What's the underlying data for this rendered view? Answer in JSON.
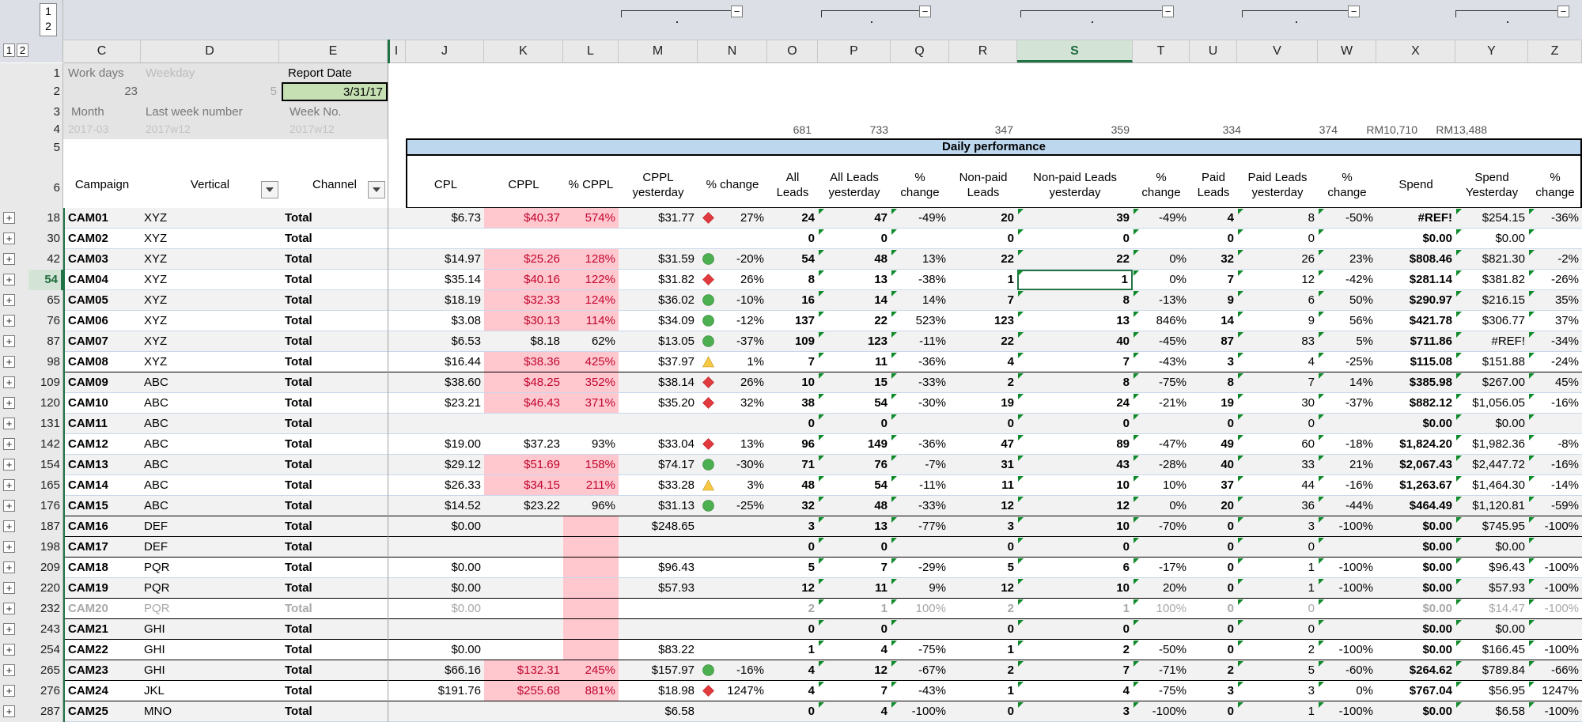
{
  "outline": {
    "row_levels": [
      "1",
      "2"
    ],
    "col_levels": [
      "1",
      "2"
    ]
  },
  "columns": [
    "C",
    "D",
    "E",
    "I",
    "J",
    "K",
    "L",
    "M",
    "N",
    "O",
    "P",
    "Q",
    "R",
    "S",
    "T",
    "U",
    "V",
    "W",
    "X",
    "Y",
    "Z"
  ],
  "selected_column": "S",
  "info": {
    "rows": [
      "1",
      "2",
      "3",
      "4",
      "5",
      "6"
    ],
    "work_days_label": "Work days",
    "weekday_label": "Weekday",
    "report_date_label": "Report Date",
    "work_days_value": "23",
    "weekday_value": "5",
    "report_date_value": "3/31/17",
    "month_label": "Month",
    "last_week_label": "Last week number",
    "week_no_label": "Week No.",
    "month_value": "2017-03",
    "last_week_value": "2017w12",
    "week_no_value": "2017w12"
  },
  "totals": {
    "O": "681",
    "P": "733",
    "R": "347",
    "S": "359",
    "U": "334",
    "V": "374",
    "X": "RM10,710",
    "Y": "RM13,488"
  },
  "banner": "Daily performance",
  "headers": {
    "campaign": "Campaign",
    "vertical": "Vertical",
    "channel": "Channel",
    "cpl": "CPL",
    "cppl": "CPPL",
    "pct_cppl": "% CPPL",
    "cppl_y1": "CPPL",
    "cppl_y2": "yesterday",
    "pct_change": "% change",
    "all_leads1": "All",
    "all_leads2": "Leads",
    "all_leads_y1": "All Leads",
    "all_leads_y2": "yesterday",
    "pct1": "%",
    "pct2": "change",
    "np1": "Non-paid",
    "np2": "Leads",
    "np_y1": "Non-paid Leads",
    "np_y2": "yesterday",
    "paid1": "Paid",
    "paid2": "Leads",
    "paid_y1": "Paid Leads",
    "paid_y2": "yesterday",
    "spend": "Spend",
    "spend_y1": "Spend",
    "spend_y2": "Yesterday"
  },
  "rows": [
    {
      "row": "18",
      "campaign": "CAM01",
      "vertical": "XYZ",
      "channel": "Total",
      "cpl": "$6.73",
      "cppl": "$40.37",
      "pct_cppl": "574%",
      "cppl_y": "$31.77",
      "icon": "red-diamond",
      "chg": "27%",
      "all": "24",
      "all_y": "47",
      "all_chg": "-49%",
      "np": "20",
      "np_y": "39",
      "np_chg": "-49%",
      "paid": "4",
      "paid_y": "8",
      "paid_chg": "-50%",
      "spend": "#REF!",
      "spend_y": "$254.15",
      "spend_chg": "-36%"
    },
    {
      "row": "30",
      "campaign": "CAM02",
      "vertical": "XYZ",
      "channel": "Total",
      "cpl": "",
      "cppl": "",
      "pct_cppl": "",
      "cppl_y": "",
      "icon": "",
      "chg": "",
      "all": "0",
      "all_y": "0",
      "all_chg": "",
      "np": "0",
      "np_y": "0",
      "np_chg": "",
      "paid": "0",
      "paid_y": "0",
      "paid_chg": "",
      "spend": "$0.00",
      "spend_y": "$0.00",
      "spend_chg": ""
    },
    {
      "row": "42",
      "campaign": "CAM03",
      "vertical": "XYZ",
      "channel": "Total",
      "cpl": "$14.97",
      "cppl": "$25.26",
      "pct_cppl": "128%",
      "cppl_y": "$31.59",
      "icon": "green-circle",
      "chg": "-20%",
      "all": "54",
      "all_y": "48",
      "all_chg": "13%",
      "np": "22",
      "np_y": "22",
      "np_chg": "0%",
      "paid": "32",
      "paid_y": "26",
      "paid_chg": "23%",
      "spend": "$808.46",
      "spend_y": "$821.30",
      "spend_chg": "-2%"
    },
    {
      "row": "54",
      "campaign": "CAM04",
      "vertical": "XYZ",
      "channel": "Total",
      "cpl": "$35.14",
      "cppl": "$40.16",
      "pct_cppl": "122%",
      "cppl_y": "$31.82",
      "icon": "red-diamond",
      "chg": "26%",
      "all": "8",
      "all_y": "13",
      "all_chg": "-38%",
      "np": "1",
      "np_y": "1",
      "np_chg": "0%",
      "paid": "7",
      "paid_y": "12",
      "paid_chg": "-42%",
      "spend": "$281.14",
      "spend_y": "$381.82",
      "spend_chg": "-26%"
    },
    {
      "row": "65",
      "campaign": "CAM05",
      "vertical": "XYZ",
      "channel": "Total",
      "cpl": "$18.19",
      "cppl": "$32.33",
      "pct_cppl": "124%",
      "cppl_y": "$36.02",
      "icon": "green-circle",
      "chg": "-10%",
      "all": "16",
      "all_y": "14",
      "all_chg": "14%",
      "np": "7",
      "np_y": "8",
      "np_chg": "-13%",
      "paid": "9",
      "paid_y": "6",
      "paid_chg": "50%",
      "spend": "$290.97",
      "spend_y": "$216.15",
      "spend_chg": "35%"
    },
    {
      "row": "76",
      "campaign": "CAM06",
      "vertical": "XYZ",
      "channel": "Total",
      "cpl": "$3.08",
      "cppl": "$30.13",
      "pct_cppl": "114%",
      "cppl_y": "$34.09",
      "icon": "green-circle",
      "chg": "-12%",
      "all": "137",
      "all_y": "22",
      "all_chg": "523%",
      "np": "123",
      "np_y": "13",
      "np_chg": "846%",
      "paid": "14",
      "paid_y": "9",
      "paid_chg": "56%",
      "spend": "$421.78",
      "spend_y": "$306.77",
      "spend_chg": "37%"
    },
    {
      "row": "87",
      "campaign": "CAM07",
      "vertical": "XYZ",
      "channel": "Total",
      "cpl": "$6.53",
      "cppl": "$8.18",
      "pct_cppl": "62%",
      "cppl_y": "$13.05",
      "icon": "green-circle",
      "chg": "-37%",
      "all": "109",
      "all_y": "123",
      "all_chg": "-11%",
      "np": "22",
      "np_y": "40",
      "np_chg": "-45%",
      "paid": "87",
      "paid_y": "83",
      "paid_chg": "5%",
      "spend": "$711.86",
      "spend_y": "#REF!",
      "spend_chg": "-34%"
    },
    {
      "row": "98",
      "campaign": "CAM08",
      "vertical": "XYZ",
      "channel": "Total",
      "cpl": "$16.44",
      "cppl": "$38.36",
      "pct_cppl": "425%",
      "cppl_y": "$37.97",
      "icon": "yellow-triangle",
      "chg": "1%",
      "all": "7",
      "all_y": "11",
      "all_chg": "-36%",
      "np": "4",
      "np_y": "7",
      "np_chg": "-43%",
      "paid": "3",
      "paid_y": "4",
      "paid_chg": "-25%",
      "spend": "$115.08",
      "spend_y": "$151.88",
      "spend_chg": "-24%"
    },
    {
      "row": "109",
      "campaign": "CAM09",
      "vertical": "ABC",
      "channel": "Total",
      "cpl": "$38.60",
      "cppl": "$48.25",
      "pct_cppl": "352%",
      "cppl_y": "$38.14",
      "icon": "red-diamond",
      "chg": "26%",
      "all": "10",
      "all_y": "15",
      "all_chg": "-33%",
      "np": "2",
      "np_y": "8",
      "np_chg": "-75%",
      "paid": "8",
      "paid_y": "7",
      "paid_chg": "14%",
      "spend": "$385.98",
      "spend_y": "$267.00",
      "spend_chg": "45%"
    },
    {
      "row": "120",
      "campaign": "CAM10",
      "vertical": "ABC",
      "channel": "Total",
      "cpl": "$23.21",
      "cppl": "$46.43",
      "pct_cppl": "371%",
      "cppl_y": "$35.20",
      "icon": "red-diamond",
      "chg": "32%",
      "all": "38",
      "all_y": "54",
      "all_chg": "-30%",
      "np": "19",
      "np_y": "24",
      "np_chg": "-21%",
      "paid": "19",
      "paid_y": "30",
      "paid_chg": "-37%",
      "spend": "$882.12",
      "spend_y": "$1,056.05",
      "spend_chg": "-16%"
    },
    {
      "row": "131",
      "campaign": "CAM11",
      "vertical": "ABC",
      "channel": "Total",
      "cpl": "",
      "cppl": "",
      "pct_cppl": "",
      "cppl_y": "",
      "icon": "",
      "chg": "",
      "all": "0",
      "all_y": "0",
      "all_chg": "",
      "np": "0",
      "np_y": "0",
      "np_chg": "",
      "paid": "0",
      "paid_y": "0",
      "paid_chg": "",
      "spend": "$0.00",
      "spend_y": "$0.00",
      "spend_chg": ""
    },
    {
      "row": "142",
      "campaign": "CAM12",
      "vertical": "ABC",
      "channel": "Total",
      "cpl": "$19.00",
      "cppl": "$37.23",
      "pct_cppl": "93%",
      "cppl_y": "$33.04",
      "icon": "red-diamond",
      "chg": "13%",
      "all": "96",
      "all_y": "149",
      "all_chg": "-36%",
      "np": "47",
      "np_y": "89",
      "np_chg": "-47%",
      "paid": "49",
      "paid_y": "60",
      "paid_chg": "-18%",
      "spend": "$1,824.20",
      "spend_y": "$1,982.36",
      "spend_chg": "-8%"
    },
    {
      "row": "154",
      "campaign": "CAM13",
      "vertical": "ABC",
      "channel": "Total",
      "cpl": "$29.12",
      "cppl": "$51.69",
      "pct_cppl": "158%",
      "cppl_y": "$74.17",
      "icon": "green-circle",
      "chg": "-30%",
      "all": "71",
      "all_y": "76",
      "all_chg": "-7%",
      "np": "31",
      "np_y": "43",
      "np_chg": "-28%",
      "paid": "40",
      "paid_y": "33",
      "paid_chg": "21%",
      "spend": "$2,067.43",
      "spend_y": "$2,447.72",
      "spend_chg": "-16%"
    },
    {
      "row": "165",
      "campaign": "CAM14",
      "vertical": "ABC",
      "channel": "Total",
      "cpl": "$26.33",
      "cppl": "$34.15",
      "pct_cppl": "211%",
      "cppl_y": "$33.28",
      "icon": "yellow-triangle",
      "chg": "3%",
      "all": "48",
      "all_y": "54",
      "all_chg": "-11%",
      "np": "11",
      "np_y": "10",
      "np_chg": "10%",
      "paid": "37",
      "paid_y": "44",
      "paid_chg": "-16%",
      "spend": "$1,263.67",
      "spend_y": "$1,464.30",
      "spend_chg": "-14%"
    },
    {
      "row": "176",
      "campaign": "CAM15",
      "vertical": "ABC",
      "channel": "Total",
      "cpl": "$14.52",
      "cppl": "$23.22",
      "pct_cppl": "96%",
      "cppl_y": "$31.13",
      "icon": "green-circle",
      "chg": "-25%",
      "all": "32",
      "all_y": "48",
      "all_chg": "-33%",
      "np": "12",
      "np_y": "12",
      "np_chg": "0%",
      "paid": "20",
      "paid_y": "36",
      "paid_chg": "-44%",
      "spend": "$464.49",
      "spend_y": "$1,120.81",
      "spend_chg": "-59%"
    },
    {
      "row": "187",
      "campaign": "CAM16",
      "vertical": "DEF",
      "channel": "Total",
      "cpl": "$0.00",
      "cppl": "",
      "pct_cppl": "",
      "cppl_y": "$248.65",
      "icon": "",
      "chg": "",
      "all": "3",
      "all_y": "13",
      "all_chg": "-77%",
      "np": "3",
      "np_y": "10",
      "np_chg": "-70%",
      "paid": "0",
      "paid_y": "3",
      "paid_chg": "-100%",
      "spend": "$0.00",
      "spend_y": "$745.95",
      "spend_chg": "-100%"
    },
    {
      "row": "198",
      "campaign": "CAM17",
      "vertical": "DEF",
      "channel": "Total",
      "cpl": "",
      "cppl": "",
      "pct_cppl": "",
      "cppl_y": "",
      "icon": "",
      "chg": "",
      "all": "0",
      "all_y": "0",
      "all_chg": "",
      "np": "0",
      "np_y": "0",
      "np_chg": "",
      "paid": "0",
      "paid_y": "0",
      "paid_chg": "",
      "spend": "$0.00",
      "spend_y": "$0.00",
      "spend_chg": ""
    },
    {
      "row": "209",
      "campaign": "CAM18",
      "vertical": "PQR",
      "channel": "Total",
      "cpl": "$0.00",
      "cppl": "",
      "pct_cppl": "",
      "cppl_y": "$96.43",
      "icon": "",
      "chg": "",
      "all": "5",
      "all_y": "7",
      "all_chg": "-29%",
      "np": "5",
      "np_y": "6",
      "np_chg": "-17%",
      "paid": "0",
      "paid_y": "1",
      "paid_chg": "-100%",
      "spend": "$0.00",
      "spend_y": "$96.43",
      "spend_chg": "-100%"
    },
    {
      "row": "220",
      "campaign": "CAM19",
      "vertical": "PQR",
      "channel": "Total",
      "cpl": "$0.00",
      "cppl": "",
      "pct_cppl": "",
      "cppl_y": "$57.93",
      "icon": "",
      "chg": "",
      "all": "12",
      "all_y": "11",
      "all_chg": "9%",
      "np": "12",
      "np_y": "10",
      "np_chg": "20%",
      "paid": "0",
      "paid_y": "1",
      "paid_chg": "-100%",
      "spend": "$0.00",
      "spend_y": "$57.93",
      "spend_chg": "-100%"
    },
    {
      "row": "232",
      "campaign": "CAM20",
      "vertical": "PQR",
      "channel": "Total",
      "cpl": "$0.00",
      "cppl": "",
      "pct_cppl": "",
      "cppl_y": "",
      "icon": "",
      "chg": "",
      "all": "2",
      "all_y": "1",
      "all_chg": "100%",
      "np": "2",
      "np_y": "1",
      "np_chg": "100%",
      "paid": "0",
      "paid_y": "0",
      "paid_chg": "",
      "spend": "$0.00",
      "spend_y": "$14.47",
      "spend_chg": "-100%",
      "dim": true
    },
    {
      "row": "243",
      "campaign": "CAM21",
      "vertical": "GHI",
      "channel": "Total",
      "cpl": "",
      "cppl": "",
      "pct_cppl": "",
      "cppl_y": "",
      "icon": "",
      "chg": "",
      "all": "0",
      "all_y": "0",
      "all_chg": "",
      "np": "0",
      "np_y": "0",
      "np_chg": "",
      "paid": "0",
      "paid_y": "0",
      "paid_chg": "",
      "spend": "$0.00",
      "spend_y": "$0.00",
      "spend_chg": ""
    },
    {
      "row": "254",
      "campaign": "CAM22",
      "vertical": "GHI",
      "channel": "Total",
      "cpl": "$0.00",
      "cppl": "",
      "pct_cppl": "",
      "cppl_y": "$83.22",
      "icon": "",
      "chg": "",
      "all": "1",
      "all_y": "4",
      "all_chg": "-75%",
      "np": "1",
      "np_y": "2",
      "np_chg": "-50%",
      "paid": "0",
      "paid_y": "2",
      "paid_chg": "-100%",
      "spend": "$0.00",
      "spend_y": "$166.45",
      "spend_chg": "-100%"
    },
    {
      "row": "265",
      "campaign": "CAM23",
      "vertical": "GHI",
      "channel": "Total",
      "cpl": "$66.16",
      "cppl": "$132.31",
      "pct_cppl": "245%",
      "cppl_y": "$157.97",
      "icon": "green-circle",
      "chg": "-16%",
      "all": "4",
      "all_y": "12",
      "all_chg": "-67%",
      "np": "2",
      "np_y": "7",
      "np_chg": "-71%",
      "paid": "2",
      "paid_y": "5",
      "paid_chg": "-60%",
      "spend": "$264.62",
      "spend_y": "$789.84",
      "spend_chg": "-66%"
    },
    {
      "row": "276",
      "campaign": "CAM24",
      "vertical": "JKL",
      "channel": "Total",
      "cpl": "$191.76",
      "cppl": "$255.68",
      "pct_cppl": "881%",
      "cppl_y": "$18.98",
      "icon": "red-diamond",
      "chg": "1247%",
      "all": "4",
      "all_y": "7",
      "all_chg": "-43%",
      "np": "1",
      "np_y": "4",
      "np_chg": "-75%",
      "paid": "3",
      "paid_y": "3",
      "paid_chg": "0%",
      "spend": "$767.04",
      "spend_y": "$56.95",
      "spend_chg": "1247%"
    },
    {
      "row": "287",
      "campaign": "CAM25",
      "vertical": "MNO",
      "channel": "Total",
      "cpl": "",
      "cppl": "",
      "pct_cppl": "",
      "cppl_y": "$6.58",
      "icon": "",
      "chg": "",
      "all": "0",
      "all_y": "4",
      "all_chg": "-100%",
      "np": "0",
      "np_y": "3",
      "np_chg": "-100%",
      "paid": "0",
      "paid_y": "1",
      "paid_chg": "-100%",
      "spend": "$0.00",
      "spend_y": "$6.58",
      "spend_chg": "-100%"
    }
  ],
  "colors": {
    "accent": "#217346",
    "pink_fill": "#ffc7ce",
    "red_text": "#c0062f",
    "banner": "#bdd7ee",
    "green_input": "#c6e0b4"
  }
}
